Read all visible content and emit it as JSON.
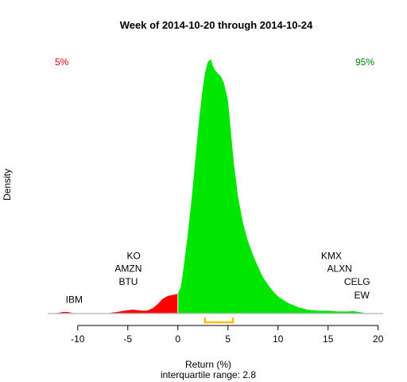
{
  "chart_data": {
    "type": "area",
    "title": "Week of 2014-10-20 through 2014-10-24",
    "xlabel": "Return (%)",
    "subtitle": "interquartile range: 2.8",
    "ylabel": "Density",
    "xlim": [
      -13,
      20.5
    ],
    "x_ticks": [
      -10,
      -5,
      0,
      5,
      10,
      15,
      20
    ],
    "left_tail_label": "5%",
    "right_tail_label": "95%",
    "split_at": 0,
    "colors": {
      "negative": "#ff0000",
      "positive": "#00e600",
      "iqr": "#ffbb00",
      "baseline": "#c0c0c0"
    },
    "interquartile": [
      2.7,
      5.5
    ],
    "density": {
      "x": [
        -12.6,
        -12,
        -11.5,
        -11,
        -10.5,
        -10,
        -9,
        -8,
        -7,
        -6.5,
        -6,
        -5.5,
        -5,
        -4.5,
        -4,
        -3.5,
        -3,
        -2.5,
        -2,
        -1.5,
        -1,
        -0.5,
        -0.3,
        0,
        0.3,
        0.6,
        1,
        1.4,
        1.8,
        2.1,
        2.4,
        2.7,
        3,
        3.3,
        3.5,
        3.7,
        4,
        4.3,
        4.6,
        5,
        5.3,
        5.6,
        6,
        6.5,
        7,
        7.5,
        8,
        8.5,
        9,
        9.5,
        10,
        11,
        12,
        13,
        14,
        15,
        16,
        17,
        17.5,
        18,
        18.5,
        19
      ],
      "y": [
        0.3,
        0.6,
        1.5,
        1.5,
        0.6,
        0.1,
        0.05,
        0.05,
        0.3,
        1,
        1.6,
        2.4,
        3.2,
        3.6,
        3.2,
        2.6,
        3,
        5,
        9,
        14,
        16.5,
        17.5,
        17.8,
        18.5,
        25,
        45,
        75,
        110,
        150,
        180,
        205,
        225,
        236,
        238,
        232,
        228,
        225,
        222,
        216,
        200,
        170,
        140,
        110,
        85,
        68,
        55,
        44,
        34,
        27,
        21,
        16,
        10,
        6,
        3.5,
        2.7,
        2.7,
        2,
        2,
        2.3,
        1.6,
        0.8,
        0.2
      ]
    },
    "annotations": [
      {
        "text": "IBM",
        "x": -11.2,
        "y": 10
      },
      {
        "text": "BTU",
        "x": -5.9,
        "y": 27
      },
      {
        "text": "AMZN",
        "x": -6.3,
        "y": 39
      },
      {
        "text": "KO",
        "x": -5.1,
        "y": 51
      },
      {
        "text": "KMX",
        "x": 14.3,
        "y": 51
      },
      {
        "text": "ALXN",
        "x": 14.9,
        "y": 39
      },
      {
        "text": "CELG",
        "x": 16.6,
        "y": 27
      },
      {
        "text": "EW",
        "x": 17.6,
        "y": 14
      }
    ]
  }
}
